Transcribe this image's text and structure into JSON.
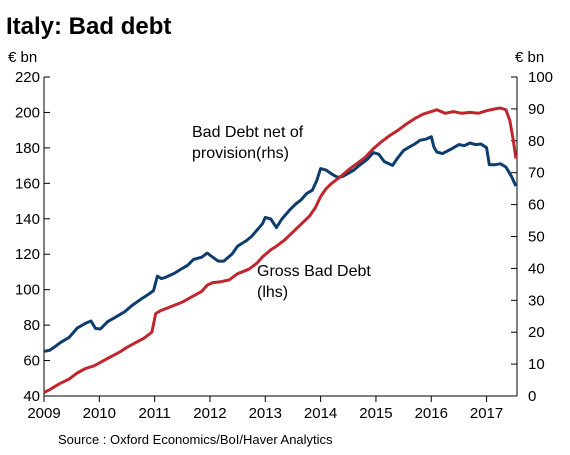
{
  "chart_data": {
    "type": "line",
    "title": "Italy:  Bad debt",
    "left_unit": "€ bn",
    "right_unit": "€ bn",
    "source": "Source : Oxford Economics/BoI/Haver Analytics",
    "x_ticks": [
      "2009",
      "2010",
      "2011",
      "2012",
      "2013",
      "2014",
      "2015",
      "2016",
      "2017"
    ],
    "xlim": [
      2009,
      2017.55
    ],
    "left_axis": {
      "ylim": [
        40,
        220
      ],
      "ticks": [
        40,
        60,
        80,
        100,
        120,
        140,
        160,
        180,
        200,
        220
      ]
    },
    "right_axis": {
      "ylim": [
        0,
        100
      ],
      "ticks": [
        0,
        10,
        20,
        30,
        40,
        50,
        60,
        70,
        80,
        90,
        100
      ]
    },
    "grid": false,
    "colors": {
      "gross": "#c0262d",
      "net": "#0d3d6e"
    },
    "series": [
      {
        "key": "net",
        "axis": "right",
        "label_lines": [
          "Bad Debt net of",
          "provision(rhs)"
        ],
        "points": [
          [
            2009.0,
            14.0
          ],
          [
            2009.1,
            14.3
          ],
          [
            2009.2,
            15.5
          ],
          [
            2009.3,
            16.8
          ],
          [
            2009.45,
            18.3
          ],
          [
            2009.6,
            21.3
          ],
          [
            2009.75,
            22.8
          ],
          [
            2009.85,
            23.5
          ],
          [
            2009.93,
            21.2
          ],
          [
            2010.02,
            21.0
          ],
          [
            2010.15,
            23.3
          ],
          [
            2010.3,
            24.8
          ],
          [
            2010.45,
            26.3
          ],
          [
            2010.6,
            28.5
          ],
          [
            2010.75,
            30.3
          ],
          [
            2010.9,
            32.0
          ],
          [
            2010.98,
            33.0
          ],
          [
            2011.05,
            37.6
          ],
          [
            2011.12,
            36.8
          ],
          [
            2011.2,
            37.2
          ],
          [
            2011.35,
            38.4
          ],
          [
            2011.5,
            40.0
          ],
          [
            2011.6,
            41.0
          ],
          [
            2011.7,
            42.8
          ],
          [
            2011.85,
            43.5
          ],
          [
            2011.95,
            44.8
          ],
          [
            2012.05,
            43.5
          ],
          [
            2012.15,
            42.3
          ],
          [
            2012.25,
            42.3
          ],
          [
            2012.4,
            44.5
          ],
          [
            2012.5,
            47.0
          ],
          [
            2012.65,
            48.6
          ],
          [
            2012.75,
            50.0
          ],
          [
            2012.85,
            52.0
          ],
          [
            2012.95,
            54.0
          ],
          [
            2013.0,
            56.0
          ],
          [
            2013.1,
            55.5
          ],
          [
            2013.2,
            52.8
          ],
          [
            2013.3,
            55.5
          ],
          [
            2013.45,
            58.5
          ],
          [
            2013.55,
            60.2
          ],
          [
            2013.65,
            61.5
          ],
          [
            2013.75,
            63.5
          ],
          [
            2013.85,
            64.5
          ],
          [
            2013.93,
            67.5
          ],
          [
            2014.0,
            71.3
          ],
          [
            2014.1,
            70.8
          ],
          [
            2014.2,
            69.6
          ],
          [
            2014.3,
            68.6
          ],
          [
            2014.4,
            68.8
          ],
          [
            2014.5,
            69.8
          ],
          [
            2014.6,
            70.8
          ],
          [
            2014.7,
            72.3
          ],
          [
            2014.85,
            74.3
          ],
          [
            2014.95,
            76.3
          ],
          [
            2015.05,
            75.8
          ],
          [
            2015.15,
            73.5
          ],
          [
            2015.3,
            72.3
          ],
          [
            2015.4,
            74.8
          ],
          [
            2015.5,
            77.0
          ],
          [
            2015.6,
            78.0
          ],
          [
            2015.7,
            79.0
          ],
          [
            2015.8,
            80.2
          ],
          [
            2015.9,
            80.5
          ],
          [
            2016.0,
            81.3
          ],
          [
            2016.05,
            78.0
          ],
          [
            2016.1,
            76.5
          ],
          [
            2016.2,
            76.0
          ],
          [
            2016.35,
            77.3
          ],
          [
            2016.5,
            78.8
          ],
          [
            2016.6,
            78.5
          ],
          [
            2016.7,
            79.3
          ],
          [
            2016.8,
            78.8
          ],
          [
            2016.9,
            79.0
          ],
          [
            2017.0,
            77.8
          ],
          [
            2017.05,
            72.5
          ],
          [
            2017.15,
            72.5
          ],
          [
            2017.25,
            72.8
          ],
          [
            2017.35,
            71.8
          ],
          [
            2017.45,
            68.8
          ],
          [
            2017.53,
            65.8
          ]
        ]
      },
      {
        "key": "gross",
        "axis": "left",
        "label_lines": [
          "Gross Bad Debt",
          "(lhs)"
        ],
        "points": [
          [
            2009.0,
            42
          ],
          [
            2009.1,
            43.5
          ],
          [
            2009.2,
            45.5
          ],
          [
            2009.3,
            47.2
          ],
          [
            2009.45,
            49.5
          ],
          [
            2009.6,
            53.0
          ],
          [
            2009.75,
            55.5
          ],
          [
            2009.9,
            57.0
          ],
          [
            2010.05,
            59.5
          ],
          [
            2010.2,
            62.0
          ],
          [
            2010.35,
            64.5
          ],
          [
            2010.5,
            67.5
          ],
          [
            2010.65,
            70.0
          ],
          [
            2010.8,
            72.5
          ],
          [
            2010.95,
            76.0
          ],
          [
            2011.02,
            86.5
          ],
          [
            2011.1,
            88.0
          ],
          [
            2011.3,
            90.5
          ],
          [
            2011.5,
            93.0
          ],
          [
            2011.7,
            96.5
          ],
          [
            2011.85,
            99.0
          ],
          [
            2011.95,
            102.5
          ],
          [
            2012.05,
            104.0
          ],
          [
            2012.2,
            104.5
          ],
          [
            2012.35,
            105.5
          ],
          [
            2012.5,
            109.0
          ],
          [
            2012.7,
            111.5
          ],
          [
            2012.85,
            115.0
          ],
          [
            2012.95,
            118.5
          ],
          [
            2013.1,
            122.5
          ],
          [
            2013.2,
            124.5
          ],
          [
            2013.35,
            128.0
          ],
          [
            2013.5,
            132.5
          ],
          [
            2013.65,
            137.0
          ],
          [
            2013.8,
            141.5
          ],
          [
            2013.9,
            146.0
          ],
          [
            2014.0,
            152.5
          ],
          [
            2014.1,
            157.0
          ],
          [
            2014.2,
            160.0
          ],
          [
            2014.35,
            163.5
          ],
          [
            2014.5,
            167.5
          ],
          [
            2014.65,
            171.0
          ],
          [
            2014.8,
            174.5
          ],
          [
            2014.95,
            179.5
          ],
          [
            2015.1,
            183.5
          ],
          [
            2015.25,
            187.0
          ],
          [
            2015.4,
            190.0
          ],
          [
            2015.55,
            193.5
          ],
          [
            2015.7,
            196.5
          ],
          [
            2015.85,
            199.0
          ],
          [
            2016.0,
            200.5
          ],
          [
            2016.1,
            201.5
          ],
          [
            2016.25,
            199.5
          ],
          [
            2016.4,
            200.5
          ],
          [
            2016.55,
            199.5
          ],
          [
            2016.7,
            200.0
          ],
          [
            2016.85,
            199.5
          ],
          [
            2017.0,
            201.0
          ],
          [
            2017.15,
            202.0
          ],
          [
            2017.25,
            202.5
          ],
          [
            2017.35,
            201.5
          ],
          [
            2017.42,
            195.5
          ],
          [
            2017.48,
            185.0
          ],
          [
            2017.53,
            174.0
          ]
        ]
      }
    ]
  }
}
